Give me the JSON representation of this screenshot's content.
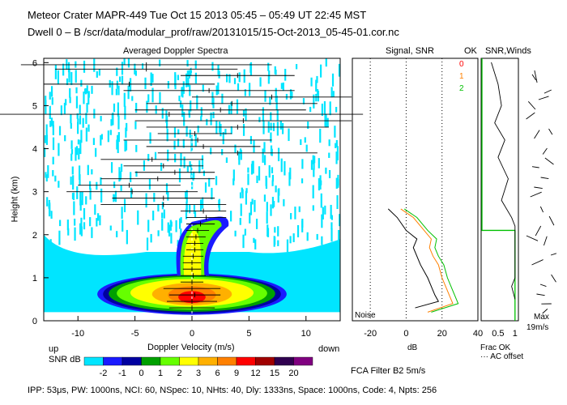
{
  "header": {
    "title_line": "Meteor Crater   MAPR-449   Tue Oct 15 2013 05:45 – 05:49 UT 22:45 MST",
    "sub_line": "Dwell  0 –  B   /scr/data/modular_prof/raw/20131015/15-Oct-2013_05-45-01.cor.nc"
  },
  "footer": {
    "params": "IPP: 53μs,  PW: 1000ns,  NCI: 60,  NSpec: 10, NHts: 40,  Dly: 1333ns,  Space: 1000ns,  Code: 4,  Npts: 256",
    "filter": "FCA Filter B2   5m/s"
  },
  "colors": {
    "snr_scale": [
      "#00e5ff",
      "#1a1aff",
      "#0000a0",
      "#00a000",
      "#66ff00",
      "#ffff00",
      "#ffb000",
      "#ff8000",
      "#ff0000",
      "#a00000",
      "#300050",
      "#800080"
    ]
  },
  "chart_data": [
    {
      "id": "doppler",
      "type": "heatmap",
      "title": "Averaged Doppler Spectra",
      "xlabel": "Doppler Velocity (m/s)",
      "ylabel": "Height (km)",
      "xlim": [
        -13,
        13
      ],
      "ylim": [
        0,
        6.1
      ],
      "xticks": [
        -10,
        -5,
        0,
        5,
        10
      ],
      "yticks": [
        0,
        1,
        2,
        3,
        4,
        5,
        6
      ],
      "left_label": "up",
      "right_label": "down",
      "colorbar": {
        "label": "SNR dB",
        "ticks": [
          "-2",
          "-1",
          "0",
          "1",
          "2",
          "3",
          "6",
          "9",
          "12",
          "15",
          "20"
        ]
      },
      "spectral_width_bars": [
        {
          "h": 0.3,
          "lo": -2.0,
          "hi": 2.0
        },
        {
          "h": 0.45,
          "lo": -2.2,
          "hi": 2.2
        },
        {
          "h": 0.6,
          "lo": -2.0,
          "hi": 2.5
        },
        {
          "h": 0.75,
          "lo": -2.5,
          "hi": 2.5
        },
        {
          "h": 0.9,
          "lo": -1.0,
          "hi": 1.0
        },
        {
          "h": 1.05,
          "lo": -1.0,
          "hi": 1.2
        },
        {
          "h": 1.2,
          "lo": -0.8,
          "hi": 0.8
        },
        {
          "h": 1.35,
          "lo": -0.8,
          "hi": 0.8
        },
        {
          "h": 1.5,
          "lo": -0.8,
          "hi": 1.0
        },
        {
          "h": 1.65,
          "lo": -0.5,
          "hi": 1.0
        },
        {
          "h": 1.8,
          "lo": -0.5,
          "hi": 1.0
        },
        {
          "h": 1.95,
          "lo": -0.5,
          "hi": 1.2
        },
        {
          "h": 2.1,
          "lo": -0.5,
          "hi": 1.5
        },
        {
          "h": 2.25,
          "lo": -0.5,
          "hi": 2.0
        },
        {
          "h": 2.4,
          "lo": -0.5,
          "hi": 3.0
        },
        {
          "h": 2.55,
          "lo": -1.0,
          "hi": 3.0
        },
        {
          "h": 2.7,
          "lo": -8.0,
          "hi": 3.0
        },
        {
          "h": 2.85,
          "lo": -7.0,
          "hi": 2.0
        },
        {
          "h": 3.0,
          "lo": -11.0,
          "hi": 0.5
        },
        {
          "h": 3.15,
          "lo": -10.0,
          "hi": -1.0
        },
        {
          "h": 3.3,
          "lo": -8.0,
          "hi": 2.0
        },
        {
          "h": 3.45,
          "lo": -5.0,
          "hi": 2.0
        },
        {
          "h": 3.6,
          "lo": -6.0,
          "hi": 1.0
        },
        {
          "h": 3.75,
          "lo": -8.0,
          "hi": 1.0
        },
        {
          "h": 3.9,
          "lo": -3.0,
          "hi": 11.0
        },
        {
          "h": 4.05,
          "lo": -4.0,
          "hi": 6.0
        },
        {
          "h": 4.2,
          "lo": -6.0,
          "hi": 7.0
        },
        {
          "h": 4.35,
          "lo": -3.0,
          "hi": 3.5
        },
        {
          "h": 4.5,
          "lo": -4.0,
          "hi": 12.0
        },
        {
          "h": 4.65,
          "lo": -5.0,
          "hi": 14.0
        },
        {
          "h": 4.8,
          "lo": -19.0,
          "hi": 15.0
        },
        {
          "h": 4.9,
          "lo": -5.0,
          "hi": 10.0
        },
        {
          "h": 5.05,
          "lo": -4.0,
          "hi": 11.0
        },
        {
          "h": 5.2,
          "lo": 0.0,
          "hi": 14.0
        },
        {
          "h": 5.35,
          "lo": -6.0,
          "hi": 9.0
        },
        {
          "h": 5.5,
          "lo": -13.0,
          "hi": 2.0
        },
        {
          "h": 5.7,
          "lo": -1.0,
          "hi": 9.0
        },
        {
          "h": 5.85,
          "lo": -12.0,
          "hi": 4.0
        },
        {
          "h": 5.95,
          "lo": -15.0,
          "hi": 7.0
        }
      ]
    },
    {
      "id": "snr",
      "type": "line",
      "title": "Signal, SNR",
      "xlabel": "dB",
      "xlim": [
        -30,
        40
      ],
      "ylim": [
        0,
        6.1
      ],
      "xticks": [
        -20,
        0,
        20,
        40
      ],
      "noise_label": "Noise",
      "legend": [
        "0",
        "1",
        "2"
      ],
      "series": [
        {
          "name": "0",
          "color": "#000000",
          "points": [
            [
              5,
              0.3
            ],
            [
              18,
              0.45
            ],
            [
              16,
              0.6
            ],
            [
              14,
              0.8
            ],
            [
              12,
              1.0
            ],
            [
              8,
              1.3
            ],
            [
              6,
              1.5
            ],
            [
              4,
              1.7
            ],
            [
              6,
              1.9
            ],
            [
              0,
              2.1
            ],
            [
              -5,
              2.4
            ],
            [
              -10,
              2.6
            ]
          ]
        },
        {
          "name": "1",
          "color": "#ff8000",
          "points": [
            [
              12,
              0.2
            ],
            [
              26,
              0.4
            ],
            [
              24,
              0.6
            ],
            [
              22,
              0.8
            ],
            [
              20,
              1.0
            ],
            [
              18,
              1.3
            ],
            [
              15,
              1.5
            ],
            [
              13,
              1.7
            ],
            [
              14,
              1.9
            ],
            [
              10,
              2.1
            ],
            [
              4,
              2.4
            ],
            [
              -3,
              2.6
            ]
          ]
        },
        {
          "name": "2",
          "color": "#00c000",
          "points": [
            [
              14,
              0.2
            ],
            [
              29,
              0.4
            ],
            [
              27,
              0.6
            ],
            [
              25,
              0.8
            ],
            [
              23,
              1.0
            ],
            [
              21,
              1.3
            ],
            [
              18,
              1.5
            ],
            [
              16,
              1.7
            ],
            [
              17,
              1.9
            ],
            [
              12,
              2.1
            ],
            [
              6,
              2.4
            ],
            [
              -1,
              2.6
            ]
          ]
        }
      ]
    },
    {
      "id": "ok",
      "type": "line",
      "title": "OK",
      "xlim": [
        0,
        1.1
      ],
      "ylim": [
        0,
        6.1
      ],
      "xticks": [
        0.5,
        1
      ],
      "xlabel": "Frac OK",
      "note": "AC offset",
      "series": [
        {
          "name": "frac_ok",
          "color": "#00c000",
          "points": [
            [
              0,
              0.2
            ],
            [
              0,
              6.1
            ]
          ]
        }
      ]
    },
    {
      "id": "snr_winds",
      "type": "scatter",
      "title": "SNR,Winds",
      "max_label": "Max",
      "max_value": "19m/s"
    }
  ]
}
